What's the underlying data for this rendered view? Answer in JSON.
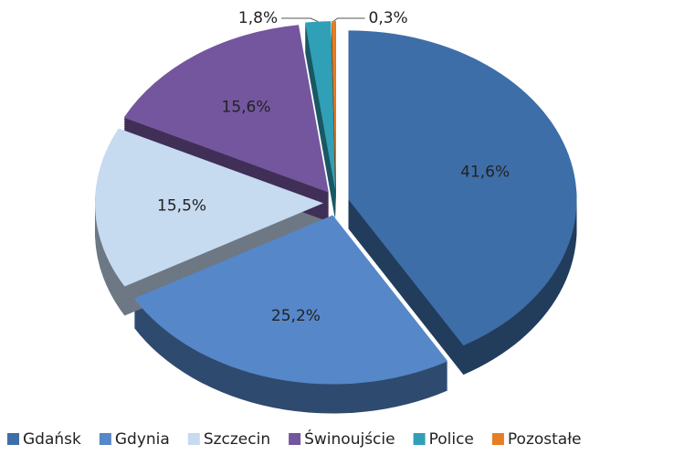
{
  "chart_data": {
    "type": "pie",
    "categories": [
      "Gdańsk",
      "Gdynia",
      "Szczecin",
      "Świnoujście",
      "Police",
      "Pozostałe"
    ],
    "values": [
      41.6,
      25.2,
      15.5,
      15.6,
      1.8,
      0.3
    ],
    "value_labels": [
      "41,6%",
      "25,2%",
      "15,5%",
      "15,6%",
      "1,8%",
      "0,3%"
    ],
    "colors": [
      "#3e6ea8",
      "#5587c9",
      "#c6daf0",
      "#74569f",
      "#30a0b6",
      "#e67e22"
    ],
    "legend": "bottom"
  }
}
